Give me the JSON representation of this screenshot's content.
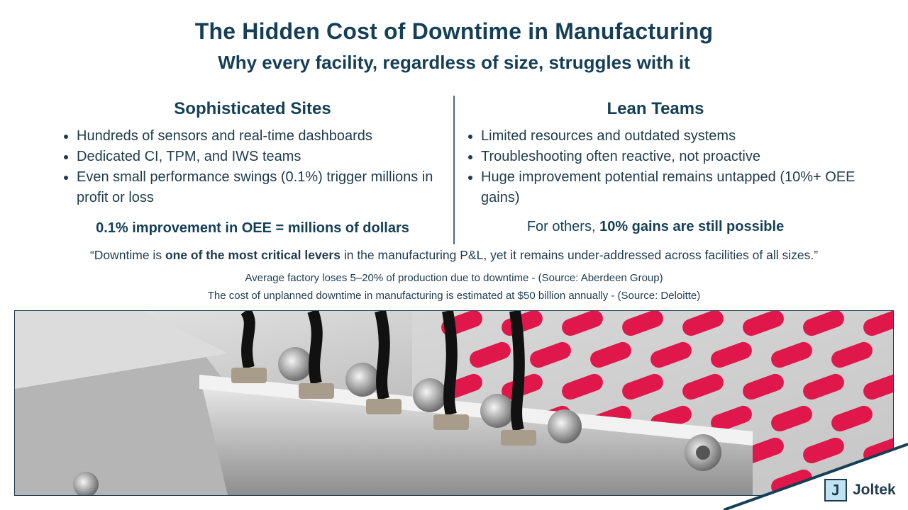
{
  "header": {
    "title": "The Hidden Cost of Downtime in Manufacturing",
    "subtitle": "Why every facility, regardless of size, struggles with it"
  },
  "left": {
    "heading": "Sophisticated Sites",
    "bullets": [
      "Hundreds of sensors and real-time dashboards",
      "Dedicated CI, TPM, and IWS teams",
      "Even small performance swings (0.1%) trigger millions in profit or loss"
    ],
    "tagline": "0.1% improvement in OEE = millions of dollars"
  },
  "right": {
    "heading": "Lean Teams",
    "bullets": [
      "Limited resources and outdated systems",
      "Troubleshooting often reactive, not proactive",
      "Huge improvement potential remains untapped (10%+ OEE gains)"
    ],
    "tagline_prefix": "For others, ",
    "tagline_bold": "10% gains are still possible"
  },
  "quote": {
    "prefix": "“Downtime is ",
    "bold": "one of the most critical levers",
    "suffix": " in the manufacturing P&L, yet it remains under-addressed across facilities of all sizes.”"
  },
  "sources": [
    "Average factory loses 5–20% of production due to downtime - (Source: Aberdeen Group)",
    "The cost of unplanned downtime in manufacturing is estimated at $50 billion annually - (Source: Deloitte)"
  ],
  "logo": {
    "mark": "J",
    "text": "Joltek"
  },
  "colors": {
    "heading": "#153f57",
    "body": "#1f3b4d",
    "capsule": "#e0174a",
    "metal": "#c9c9c9"
  }
}
